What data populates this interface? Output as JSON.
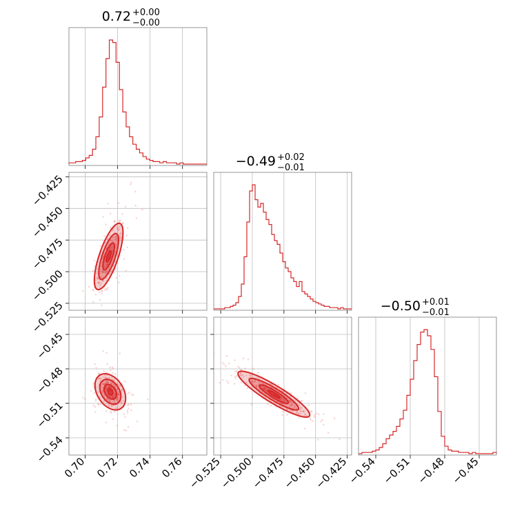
{
  "chart_data": {
    "type": "corner",
    "color": "#d62728",
    "parameters": [
      {
        "range": [
          0.69,
          0.775
        ],
        "ticks": [
          "0.70",
          "0.72",
          "0.74",
          "0.76"
        ],
        "tick_values": [
          0.7,
          0.72,
          0.74,
          0.76
        ],
        "title": {
          "value": "0.72",
          "plus": "+0.00",
          "minus": "−0.00"
        }
      },
      {
        "range": [
          -0.5305,
          -0.4215
        ],
        "ticks": [
          "−0.525",
          "−0.500",
          "−0.475",
          "−0.450",
          "−0.425"
        ],
        "tick_values": [
          -0.525,
          -0.5,
          -0.475,
          -0.45,
          -0.425
        ],
        "title": {
          "value": "−0.49",
          "plus": "+0.02",
          "minus": "−0.01"
        }
      },
      {
        "range": [
          -0.555,
          -0.435
        ],
        "ticks": [
          "−0.54",
          "−0.51",
          "−0.48",
          "−0.45"
        ],
        "tick_values": [
          -0.54,
          -0.51,
          -0.48,
          -0.45
        ],
        "title": {
          "value": "−0.50",
          "plus": "+0.01",
          "minus": "−0.01"
        }
      }
    ],
    "histograms": [
      {
        "param": 0,
        "heights": [
          0.01,
          0.01,
          0.02,
          0.02,
          0.03,
          0.05,
          0.07,
          0.12,
          0.22,
          0.38,
          0.62,
          0.85,
          1.0,
          0.98,
          0.82,
          0.6,
          0.42,
          0.3,
          0.22,
          0.16,
          0.12,
          0.09,
          0.06,
          0.04,
          0.03,
          0.02,
          0.02,
          0.01,
          0.02,
          0.01,
          0.01,
          0.01,
          0,
          0.01,
          0,
          0,
          0,
          0,
          0,
          0,
          0
        ]
      },
      {
        "param": 1,
        "heights": [
          0,
          0,
          0,
          0,
          0.01,
          0.01,
          0.02,
          0.03,
          0.05,
          0.1,
          0.2,
          0.42,
          0.7,
          0.95,
          1.0,
          0.88,
          0.82,
          0.85,
          0.78,
          0.72,
          0.68,
          0.6,
          0.55,
          0.52,
          0.45,
          0.38,
          0.33,
          0.3,
          0.25,
          0.22,
          0.18,
          0.22,
          0.14,
          0.12,
          0.1,
          0.08,
          0.06,
          0.05,
          0.04,
          0.03,
          0.02,
          0.02,
          0.01,
          0.01,
          0.01,
          0,
          0.01,
          0,
          0,
          0
        ]
      },
      {
        "param": 2,
        "heights": [
          0,
          0.01,
          0.01,
          0.01,
          0.02,
          0.03,
          0.05,
          0.08,
          0.12,
          0.15,
          0.18,
          0.22,
          0.28,
          0.35,
          0.47,
          0.6,
          0.75,
          0.88,
          0.98,
          1.0,
          0.95,
          0.84,
          0.62,
          0.34,
          0.14,
          0.06,
          0.03,
          0.02,
          0.02,
          0.01,
          0.01,
          0.01,
          0,
          0.01,
          0,
          0,
          0,
          0,
          0,
          0.01
        ]
      }
    ],
    "pairs": [
      {
        "x": 0,
        "y": 1,
        "center": [
          0.7145,
          -0.488
        ],
        "corr": 0.72,
        "sx": 0.0042,
        "sy": 0.0125,
        "n": 320
      },
      {
        "x": 0,
        "y": 2,
        "center": [
          0.7155,
          -0.5
        ],
        "corr": -0.35,
        "sx": 0.0045,
        "sy": 0.0075,
        "n": 320
      },
      {
        "x": 1,
        "y": 2,
        "center": [
          -0.483,
          -0.502
        ],
        "corr": -0.9,
        "sx": 0.0135,
        "sy": 0.0095,
        "n": 360
      }
    ]
  }
}
